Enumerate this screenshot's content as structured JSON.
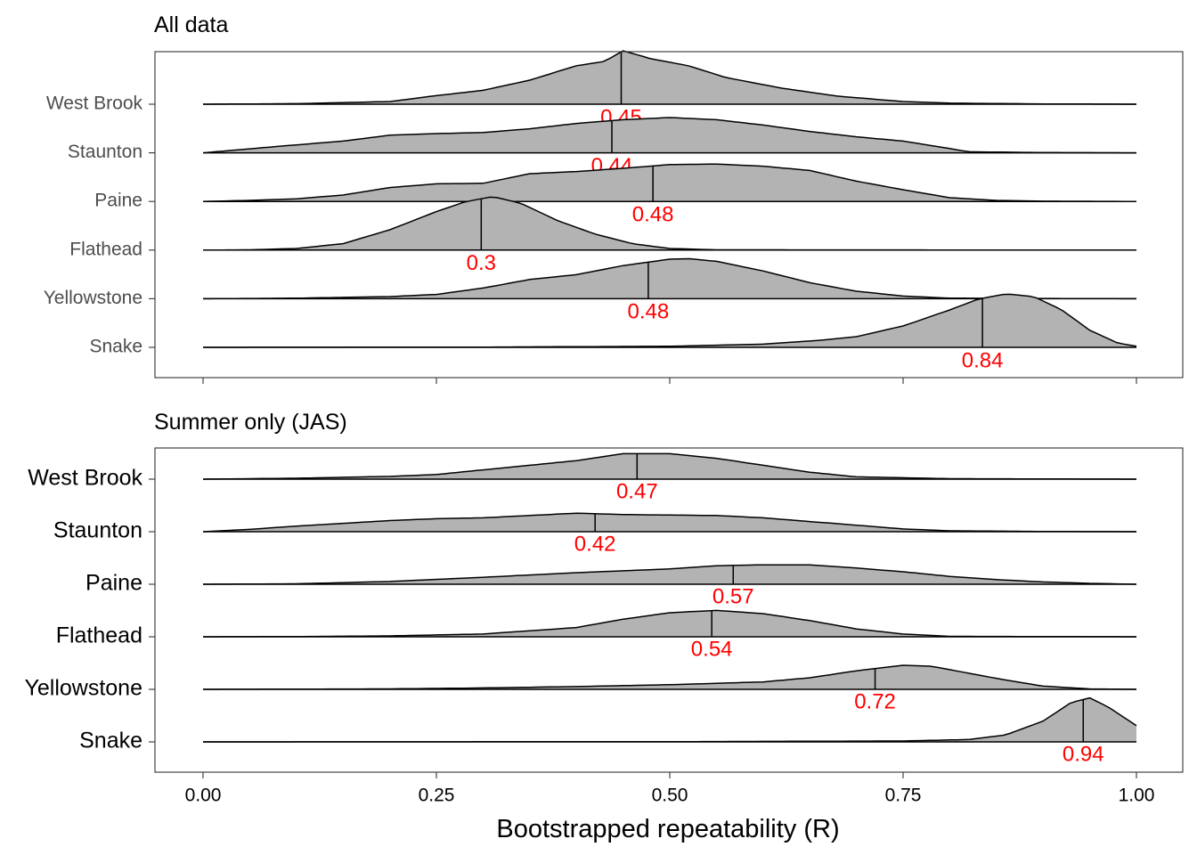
{
  "chart_data": {
    "type": "ridgeline",
    "xlabel": "Bootstrapped repeatability (R)",
    "xlim": [
      -0.1,
      1.1
    ],
    "xticks": [
      "0.00",
      "0.25",
      "0.50",
      "0.75",
      "1.00"
    ],
    "xtick_values": [
      0,
      0.25,
      0.5,
      0.75,
      1.0
    ],
    "fill_color": "#b3b3b3",
    "line_color": "#000000",
    "label_color": "#ff0000",
    "panels": [
      {
        "title": "All data",
        "series": [
          {
            "name": "West Brook",
            "label": "0.45",
            "median": 0.448,
            "density": [
              [
                0,
                0
              ],
              [
                0.1,
                0.01
              ],
              [
                0.2,
                0.05
              ],
              [
                0.25,
                0.16
              ],
              [
                0.3,
                0.26
              ],
              [
                0.35,
                0.45
              ],
              [
                0.4,
                0.72
              ],
              [
                0.43,
                0.8
              ],
              [
                0.45,
                1.0
              ],
              [
                0.48,
                0.85
              ],
              [
                0.52,
                0.72
              ],
              [
                0.56,
                0.5
              ],
              [
                0.62,
                0.3
              ],
              [
                0.68,
                0.15
              ],
              [
                0.75,
                0.05
              ],
              [
                0.8,
                0.02
              ],
              [
                0.9,
                0.005
              ],
              [
                1.0,
                0
              ]
            ]
          },
          {
            "name": "Staunton",
            "label": "0.44",
            "median": 0.438,
            "density": [
              [
                0,
                0
              ],
              [
                0.08,
                0.12
              ],
              [
                0.15,
                0.22
              ],
              [
                0.2,
                0.33
              ],
              [
                0.25,
                0.36
              ],
              [
                0.3,
                0.38
              ],
              [
                0.35,
                0.45
              ],
              [
                0.4,
                0.55
              ],
              [
                0.45,
                0.62
              ],
              [
                0.5,
                0.66
              ],
              [
                0.55,
                0.62
              ],
              [
                0.6,
                0.52
              ],
              [
                0.65,
                0.4
              ],
              [
                0.7,
                0.3
              ],
              [
                0.75,
                0.22
              ],
              [
                0.8,
                0.08
              ],
              [
                0.82,
                0.02
              ],
              [
                0.9,
                0.005
              ],
              [
                1.0,
                0
              ]
            ]
          },
          {
            "name": "Paine",
            "label": "0.48",
            "median": 0.482,
            "density": [
              [
                0,
                0
              ],
              [
                0.05,
                0.02
              ],
              [
                0.1,
                0.05
              ],
              [
                0.15,
                0.12
              ],
              [
                0.2,
                0.26
              ],
              [
                0.25,
                0.33
              ],
              [
                0.3,
                0.34
              ],
              [
                0.35,
                0.52
              ],
              [
                0.4,
                0.56
              ],
              [
                0.45,
                0.62
              ],
              [
                0.5,
                0.69
              ],
              [
                0.55,
                0.7
              ],
              [
                0.6,
                0.66
              ],
              [
                0.65,
                0.58
              ],
              [
                0.7,
                0.38
              ],
              [
                0.75,
                0.22
              ],
              [
                0.8,
                0.07
              ],
              [
                0.85,
                0.02
              ],
              [
                0.9,
                0.005
              ],
              [
                1.0,
                0
              ]
            ]
          },
          {
            "name": "Flathead",
            "label": "0.3",
            "median": 0.298,
            "density": [
              [
                0,
                0
              ],
              [
                0.05,
                0.005
              ],
              [
                0.1,
                0.03
              ],
              [
                0.15,
                0.12
              ],
              [
                0.2,
                0.38
              ],
              [
                0.25,
                0.72
              ],
              [
                0.28,
                0.9
              ],
              [
                0.31,
                1.0
              ],
              [
                0.34,
                0.88
              ],
              [
                0.38,
                0.55
              ],
              [
                0.42,
                0.3
              ],
              [
                0.46,
                0.12
              ],
              [
                0.5,
                0.03
              ],
              [
                0.55,
                0.005
              ],
              [
                1.0,
                0
              ]
            ]
          },
          {
            "name": "Yellowstone",
            "label": "0.48",
            "median": 0.477,
            "density": [
              [
                0,
                0
              ],
              [
                0.1,
                0.01
              ],
              [
                0.2,
                0.04
              ],
              [
                0.25,
                0.08
              ],
              [
                0.3,
                0.2
              ],
              [
                0.35,
                0.36
              ],
              [
                0.4,
                0.45
              ],
              [
                0.45,
                0.62
              ],
              [
                0.5,
                0.74
              ],
              [
                0.52,
                0.75
              ],
              [
                0.55,
                0.7
              ],
              [
                0.6,
                0.52
              ],
              [
                0.65,
                0.3
              ],
              [
                0.7,
                0.14
              ],
              [
                0.75,
                0.05
              ],
              [
                0.8,
                0.01
              ],
              [
                1.0,
                0
              ]
            ]
          },
          {
            "name": "Snake",
            "label": "0.84",
            "median": 0.835,
            "density": [
              [
                0,
                0
              ],
              [
                0.3,
                0.005
              ],
              [
                0.5,
                0.02
              ],
              [
                0.6,
                0.06
              ],
              [
                0.66,
                0.13
              ],
              [
                0.7,
                0.2
              ],
              [
                0.75,
                0.4
              ],
              [
                0.8,
                0.7
              ],
              [
                0.83,
                0.9
              ],
              [
                0.86,
                1.0
              ],
              [
                0.89,
                0.95
              ],
              [
                0.92,
                0.7
              ],
              [
                0.95,
                0.32
              ],
              [
                0.98,
                0.08
              ],
              [
                1.0,
                0.02
              ]
            ]
          }
        ]
      },
      {
        "title": "Summer only (JAS)",
        "series": [
          {
            "name": "West Brook",
            "label": "0.47",
            "median": 0.465,
            "density": [
              [
                0,
                0
              ],
              [
                0.1,
                0.02
              ],
              [
                0.2,
                0.06
              ],
              [
                0.25,
                0.1
              ],
              [
                0.3,
                0.2
              ],
              [
                0.35,
                0.3
              ],
              [
                0.4,
                0.4
              ],
              [
                0.45,
                0.55
              ],
              [
                0.5,
                0.55
              ],
              [
                0.55,
                0.45
              ],
              [
                0.6,
                0.3
              ],
              [
                0.65,
                0.15
              ],
              [
                0.7,
                0.05
              ],
              [
                0.8,
                0.01
              ],
              [
                1.0,
                0
              ]
            ]
          },
          {
            "name": "Staunton",
            "label": "0.42",
            "median": 0.42,
            "density": [
              [
                0,
                0
              ],
              [
                0.05,
                0.05
              ],
              [
                0.1,
                0.12
              ],
              [
                0.15,
                0.18
              ],
              [
                0.2,
                0.24
              ],
              [
                0.25,
                0.28
              ],
              [
                0.3,
                0.3
              ],
              [
                0.35,
                0.35
              ],
              [
                0.4,
                0.4
              ],
              [
                0.45,
                0.37
              ],
              [
                0.5,
                0.36
              ],
              [
                0.55,
                0.35
              ],
              [
                0.6,
                0.3
              ],
              [
                0.65,
                0.22
              ],
              [
                0.7,
                0.14
              ],
              [
                0.75,
                0.06
              ],
              [
                0.8,
                0.02
              ],
              [
                0.9,
                0.005
              ],
              [
                1.0,
                0
              ]
            ]
          },
          {
            "name": "Paine",
            "label": "0.57",
            "median": 0.568,
            "density": [
              [
                0,
                0
              ],
              [
                0.1,
                0.01
              ],
              [
                0.2,
                0.06
              ],
              [
                0.3,
                0.15
              ],
              [
                0.4,
                0.25
              ],
              [
                0.5,
                0.33
              ],
              [
                0.55,
                0.4
              ],
              [
                0.6,
                0.42
              ],
              [
                0.65,
                0.42
              ],
              [
                0.7,
                0.35
              ],
              [
                0.75,
                0.27
              ],
              [
                0.8,
                0.17
              ],
              [
                0.85,
                0.1
              ],
              [
                0.9,
                0.05
              ],
              [
                0.95,
                0.02
              ],
              [
                1.0,
                0
              ]
            ]
          },
          {
            "name": "Flathead",
            "label": "0.54",
            "median": 0.545,
            "density": [
              [
                0,
                0
              ],
              [
                0.1,
                0.005
              ],
              [
                0.2,
                0.02
              ],
              [
                0.3,
                0.06
              ],
              [
                0.4,
                0.2
              ],
              [
                0.45,
                0.38
              ],
              [
                0.5,
                0.52
              ],
              [
                0.55,
                0.57
              ],
              [
                0.6,
                0.5
              ],
              [
                0.65,
                0.35
              ],
              [
                0.7,
                0.17
              ],
              [
                0.75,
                0.06
              ],
              [
                0.8,
                0.01
              ],
              [
                1.0,
                0
              ]
            ]
          },
          {
            "name": "Yellowstone",
            "label": "0.72",
            "median": 0.72,
            "density": [
              [
                0,
                0
              ],
              [
                0.2,
                0.01
              ],
              [
                0.3,
                0.03
              ],
              [
                0.4,
                0.06
              ],
              [
                0.5,
                0.1
              ],
              [
                0.6,
                0.16
              ],
              [
                0.65,
                0.25
              ],
              [
                0.7,
                0.4
              ],
              [
                0.75,
                0.52
              ],
              [
                0.78,
                0.5
              ],
              [
                0.82,
                0.35
              ],
              [
                0.86,
                0.2
              ],
              [
                0.9,
                0.07
              ],
              [
                0.95,
                0.01
              ],
              [
                1.0,
                0
              ]
            ]
          },
          {
            "name": "Snake",
            "label": "0.94",
            "median": 0.943,
            "density": [
              [
                0,
                0
              ],
              [
                0.5,
                0.005
              ],
              [
                0.75,
                0.02
              ],
              [
                0.82,
                0.05
              ],
              [
                0.86,
                0.15
              ],
              [
                0.9,
                0.45
              ],
              [
                0.93,
                0.85
              ],
              [
                0.95,
                0.95
              ],
              [
                0.97,
                0.75
              ],
              [
                1.0,
                0.35
              ]
            ]
          }
        ]
      }
    ]
  }
}
